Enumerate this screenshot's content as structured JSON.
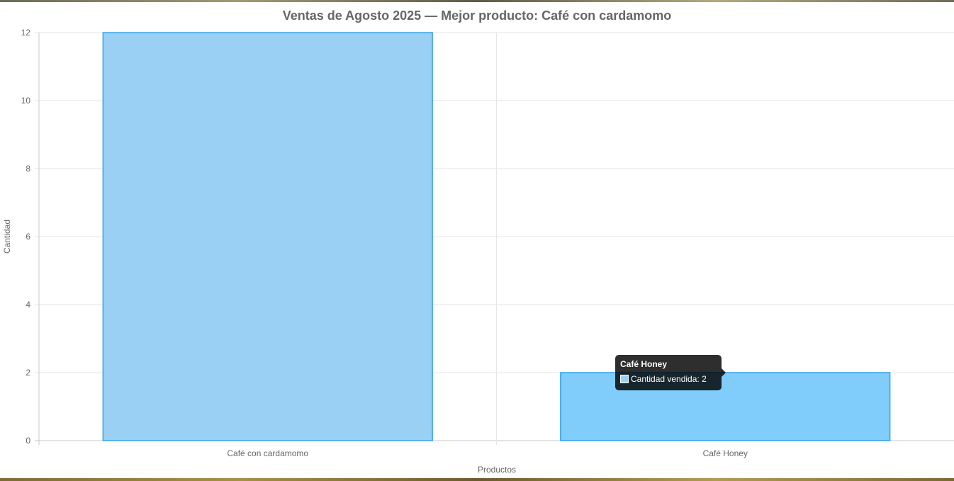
{
  "chart_data": {
    "type": "bar",
    "title": "Ventas de Agosto 2025 — Mejor producto: Café con cardamomo",
    "xlabel": "Productos",
    "ylabel": "Cantidad",
    "categories": [
      "Café con cardamomo",
      "Café Honey"
    ],
    "series": [
      {
        "name": "Cantidad vendida",
        "values": [
          12,
          2
        ]
      }
    ],
    "ylim": [
      0,
      12
    ],
    "yticks": [
      0,
      2,
      4,
      6,
      8,
      10,
      12
    ],
    "grid": true,
    "legend": "none",
    "colors": {
      "bar_fill": "#9bd0f5",
      "bar_fill_hover": "#80ccfa",
      "bar_border": "#36a2eb",
      "grid": "#e6e6e6",
      "axis": "#c8c8c8",
      "text": "#666666"
    }
  },
  "tooltip": {
    "title": "Café Honey",
    "label": "Cantidad vendida: 2"
  }
}
